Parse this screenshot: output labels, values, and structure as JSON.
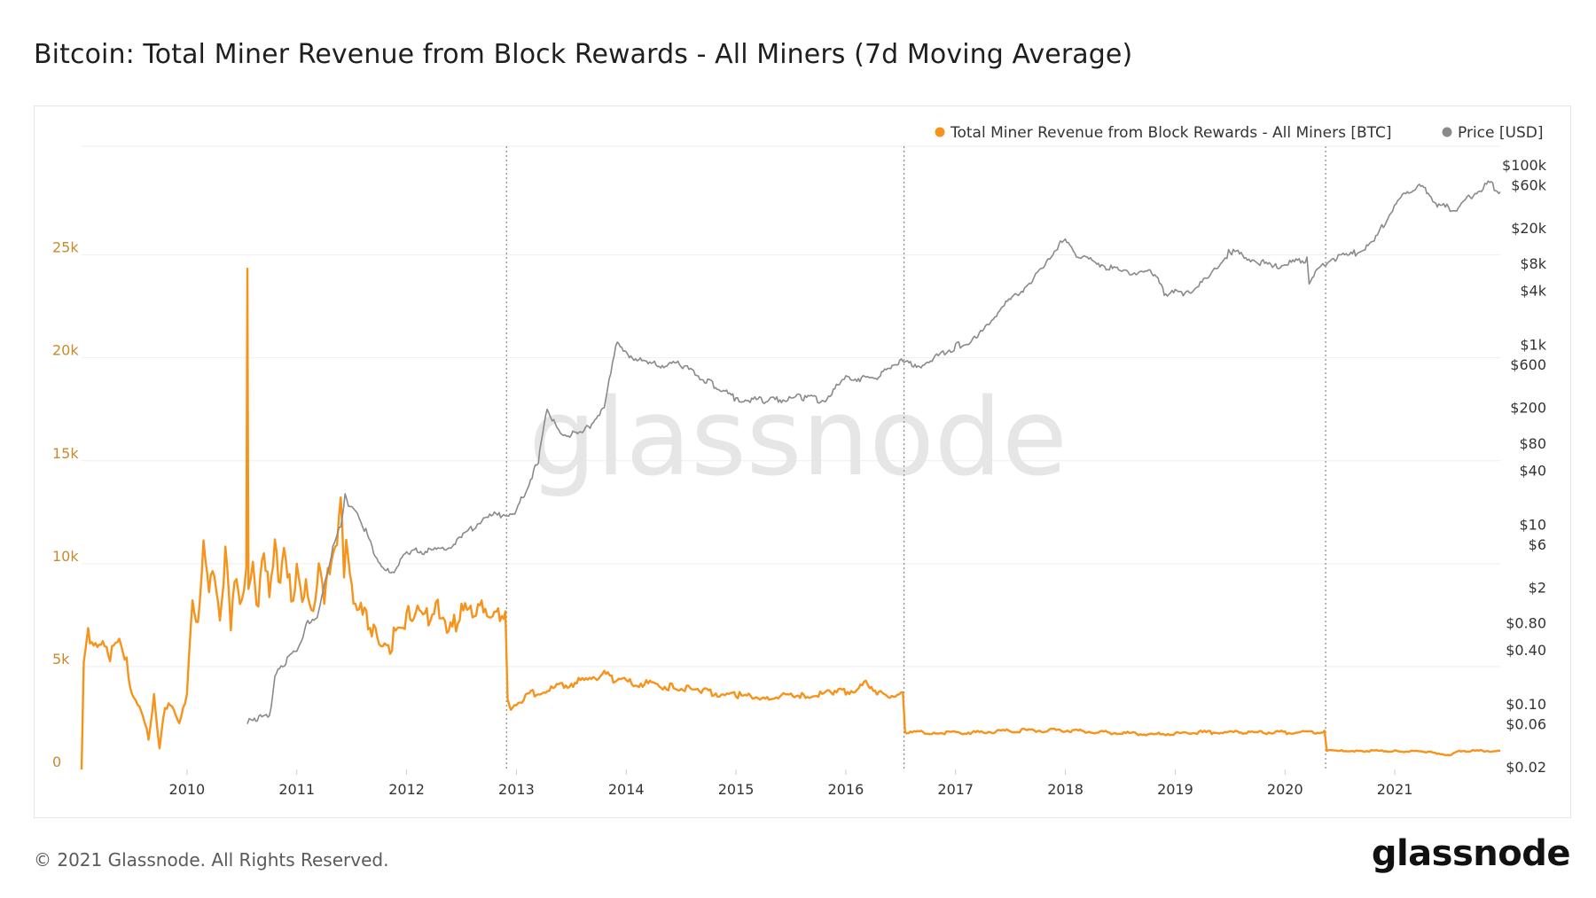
{
  "title": "Bitcoin: Total Miner Revenue from Block Rewards - All Miners (7d Moving Average)",
  "footer": {
    "copyright": "© 2021 Glassnode. All Rights Reserved.",
    "logo": "glassnode"
  },
  "watermark": "glassnode",
  "colors": {
    "revenue": "#f7931a",
    "price": "#8a8a8a",
    "left_axis_text": "#c98a2e",
    "right_axis_text": "#333333",
    "grid": "#eeeeee",
    "halving": "#888888"
  },
  "chart_data": {
    "type": "line",
    "title": "Bitcoin: Total Miner Revenue from Block Rewards - All Miners (7d Moving Average)",
    "legend": {
      "placement": "top-right",
      "entries": [
        "Total Miner Revenue from Block Rewards - All Miners [BTC]",
        "Price [USD]"
      ]
    },
    "x_axis": {
      "range": [
        2009.04,
        2021.96
      ],
      "ticks": [
        "2010",
        "2011",
        "2012",
        "2013",
        "2014",
        "2015",
        "2016",
        "2017",
        "2018",
        "2019",
        "2020",
        "2021"
      ]
    },
    "y_left": {
      "range": [
        0,
        30000
      ],
      "ticks": [
        {
          "v": 0,
          "label": "0"
        },
        {
          "v": 5000,
          "label": "5k"
        },
        {
          "v": 10000,
          "label": "10k"
        },
        {
          "v": 15000,
          "label": "15k"
        },
        {
          "v": 20000,
          "label": "20k"
        },
        {
          "v": 25000,
          "label": "25k"
        }
      ]
    },
    "y_right": {
      "scale": "log",
      "range": [
        0.02,
        100000
      ],
      "ticks": [
        {
          "v": 100000,
          "label": "$100k"
        },
        {
          "v": 60000,
          "label": "$60k"
        },
        {
          "v": 20000,
          "label": "$20k"
        },
        {
          "v": 8000,
          "label": "$8k"
        },
        {
          "v": 4000,
          "label": "$4k"
        },
        {
          "v": 1000,
          "label": "$1k"
        },
        {
          "v": 600,
          "label": "$600"
        },
        {
          "v": 200,
          "label": "$200"
        },
        {
          "v": 80,
          "label": "$80"
        },
        {
          "v": 40,
          "label": "$40"
        },
        {
          "v": 10,
          "label": "$10"
        },
        {
          "v": 6,
          "label": "$6"
        },
        {
          "v": 2,
          "label": "$2"
        },
        {
          "v": 0.8,
          "label": "$0.80"
        },
        {
          "v": 0.4,
          "label": "$0.40"
        },
        {
          "v": 0.1,
          "label": "$0.10"
        },
        {
          "v": 0.06,
          "label": "$0.06"
        },
        {
          "v": 0.02,
          "label": "$0.02"
        }
      ]
    },
    "halvings": [
      2012.91,
      2016.53,
      2020.37
    ],
    "series": [
      {
        "name": "Total Miner Revenue from Block Rewards - All Miners [BTC]",
        "axis": "left",
        "points": [
          [
            2009.04,
            0
          ],
          [
            2009.06,
            5500
          ],
          [
            2009.1,
            6600
          ],
          [
            2009.2,
            6000
          ],
          [
            2009.3,
            5600
          ],
          [
            2009.4,
            6200
          ],
          [
            2009.45,
            5200
          ],
          [
            2009.5,
            3500
          ],
          [
            2009.6,
            2700
          ],
          [
            2009.65,
            1500
          ],
          [
            2009.7,
            3500
          ],
          [
            2009.75,
            1000
          ],
          [
            2009.8,
            3100
          ],
          [
            2009.88,
            3000
          ],
          [
            2009.93,
            2200
          ],
          [
            2010.0,
            3600
          ],
          [
            2010.05,
            8300
          ],
          [
            2010.1,
            7300
          ],
          [
            2010.15,
            10500
          ],
          [
            2010.2,
            8500
          ],
          [
            2010.25,
            9500
          ],
          [
            2010.3,
            7500
          ],
          [
            2010.35,
            10600
          ],
          [
            2010.4,
            7000
          ],
          [
            2010.45,
            9600
          ],
          [
            2010.5,
            8000
          ],
          [
            2010.54,
            9500
          ],
          [
            2010.55,
            24500
          ],
          [
            2010.56,
            9000
          ],
          [
            2010.6,
            9800
          ],
          [
            2010.65,
            7800
          ],
          [
            2010.7,
            11000
          ],
          [
            2010.75,
            8800
          ],
          [
            2010.8,
            11000
          ],
          [
            2010.85,
            9000
          ],
          [
            2010.9,
            10800
          ],
          [
            2010.95,
            8300
          ],
          [
            2011.0,
            9500
          ],
          [
            2011.05,
            8100
          ],
          [
            2011.1,
            9000
          ],
          [
            2011.15,
            7800
          ],
          [
            2011.2,
            9500
          ],
          [
            2011.25,
            8000
          ],
          [
            2011.3,
            9900
          ],
          [
            2011.35,
            11000
          ],
          [
            2011.4,
            13000
          ],
          [
            2011.43,
            10000
          ],
          [
            2011.45,
            11700
          ],
          [
            2011.5,
            9000
          ],
          [
            2011.55,
            7600
          ],
          [
            2011.6,
            8000
          ],
          [
            2011.65,
            7200
          ],
          [
            2011.7,
            6800
          ],
          [
            2011.8,
            6100
          ],
          [
            2011.85,
            5800
          ],
          [
            2011.9,
            6900
          ],
          [
            2012.0,
            7400
          ],
          [
            2012.1,
            7700
          ],
          [
            2012.2,
            7300
          ],
          [
            2012.3,
            7800
          ],
          [
            2012.4,
            6800
          ],
          [
            2012.5,
            7600
          ],
          [
            2012.6,
            7500
          ],
          [
            2012.7,
            7900
          ],
          [
            2012.8,
            7600
          ],
          [
            2012.9,
            7400
          ],
          [
            2012.92,
            3500
          ],
          [
            2012.95,
            3000
          ],
          [
            2013.1,
            3600
          ],
          [
            2013.3,
            3900
          ],
          [
            2013.5,
            4200
          ],
          [
            2013.7,
            4400
          ],
          [
            2013.8,
            4700
          ],
          [
            2013.9,
            4300
          ],
          [
            2014.1,
            4200
          ],
          [
            2014.4,
            4000
          ],
          [
            2014.7,
            3800
          ],
          [
            2015.0,
            3600
          ],
          [
            2015.3,
            3500
          ],
          [
            2015.6,
            3600
          ],
          [
            2015.9,
            3700
          ],
          [
            2016.1,
            3900
          ],
          [
            2016.2,
            4200
          ],
          [
            2016.3,
            3700
          ],
          [
            2016.52,
            3600
          ],
          [
            2016.54,
            1800
          ],
          [
            2016.8,
            1800
          ],
          [
            2017.2,
            1800
          ],
          [
            2017.6,
            1900
          ],
          [
            2018.0,
            1900
          ],
          [
            2018.4,
            1800
          ],
          [
            2018.8,
            1700
          ],
          [
            2019.2,
            1800
          ],
          [
            2019.6,
            1800
          ],
          [
            2020.0,
            1800
          ],
          [
            2020.36,
            1800
          ],
          [
            2020.38,
            900
          ],
          [
            2020.7,
            900
          ],
          [
            2021.0,
            900
          ],
          [
            2021.3,
            850
          ],
          [
            2021.5,
            700
          ],
          [
            2021.6,
            900
          ],
          [
            2021.96,
            900
          ]
        ]
      },
      {
        "name": "Price [USD]",
        "axis": "right",
        "points": [
          [
            2010.55,
            0.06
          ],
          [
            2010.6,
            0.07
          ],
          [
            2010.75,
            0.07
          ],
          [
            2010.8,
            0.2
          ],
          [
            2010.9,
            0.3
          ],
          [
            2011.0,
            0.4
          ],
          [
            2011.1,
            0.8
          ],
          [
            2011.2,
            1
          ],
          [
            2011.3,
            4
          ],
          [
            2011.4,
            10
          ],
          [
            2011.44,
            20
          ],
          [
            2011.5,
            15
          ],
          [
            2011.6,
            10
          ],
          [
            2011.7,
            5
          ],
          [
            2011.8,
            3
          ],
          [
            2011.9,
            3
          ],
          [
            2012.0,
            5
          ],
          [
            2012.1,
            5
          ],
          [
            2012.3,
            5
          ],
          [
            2012.5,
            7
          ],
          [
            2012.7,
            12
          ],
          [
            2012.9,
            13
          ],
          [
            2013.0,
            14
          ],
          [
            2013.2,
            50
          ],
          [
            2013.28,
            200
          ],
          [
            2013.4,
            100
          ],
          [
            2013.6,
            100
          ],
          [
            2013.8,
            200
          ],
          [
            2013.92,
            1100
          ],
          [
            2014.0,
            800
          ],
          [
            2014.2,
            600
          ],
          [
            2014.5,
            600
          ],
          [
            2014.8,
            350
          ],
          [
            2015.0,
            250
          ],
          [
            2015.3,
            240
          ],
          [
            2015.6,
            260
          ],
          [
            2015.8,
            240
          ],
          [
            2016.0,
            420
          ],
          [
            2016.3,
            430
          ],
          [
            2016.45,
            650
          ],
          [
            2016.7,
            600
          ],
          [
            2017.0,
            950
          ],
          [
            2017.2,
            1200
          ],
          [
            2017.4,
            2500
          ],
          [
            2017.6,
            4000
          ],
          [
            2017.8,
            7000
          ],
          [
            2017.97,
            15000
          ],
          [
            2018.1,
            10000
          ],
          [
            2018.3,
            8000
          ],
          [
            2018.5,
            6500
          ],
          [
            2018.8,
            6300
          ],
          [
            2018.9,
            3800
          ],
          [
            2019.1,
            3700
          ],
          [
            2019.3,
            5500
          ],
          [
            2019.5,
            11000
          ],
          [
            2019.7,
            9000
          ],
          [
            2019.9,
            7200
          ],
          [
            2020.2,
            9000
          ],
          [
            2020.22,
            5000
          ],
          [
            2020.4,
            9000
          ],
          [
            2020.6,
            10000
          ],
          [
            2020.8,
            13000
          ],
          [
            2020.95,
            28000
          ],
          [
            2021.1,
            50000
          ],
          [
            2021.25,
            58000
          ],
          [
            2021.4,
            35000
          ],
          [
            2021.55,
            32000
          ],
          [
            2021.7,
            45000
          ],
          [
            2021.85,
            63000
          ],
          [
            2021.96,
            50000
          ]
        ]
      }
    ]
  }
}
